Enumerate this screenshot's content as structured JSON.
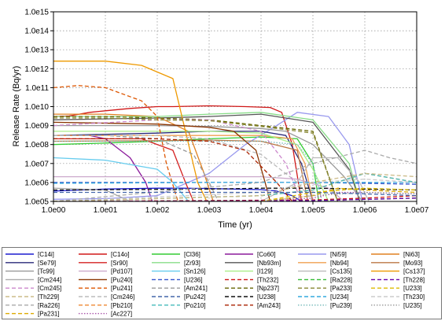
{
  "chart_data": {
    "type": "line",
    "title": "",
    "xlabel": "Time (yr)",
    "ylabel": "Release Rate (Bq/yr)",
    "xscale": "log",
    "yscale": "log",
    "xlim": [
      1,
      10000000
    ],
    "ylim": [
      100000,
      1000000000000000
    ],
    "grid": "dotted",
    "legend_position": "bottom",
    "x_ticks": [
      "1.0e00",
      "1.0e01",
      "1.0e02",
      "1.0e03",
      "1.0e04",
      "1.0e05",
      "1.0e06",
      "1.0e07"
    ],
    "y_ticks": [
      "1.0e05",
      "1.0e06",
      "1.0e07",
      "1.0e08",
      "1.0e09",
      "1.0e10",
      "1.0e11",
      "1.0e12",
      "1.0e13",
      "1.0e14",
      "1.0e15"
    ],
    "series": [
      {
        "name": "[C14i]",
        "color": "#1c1ccf",
        "dash": "solid",
        "x": [
          1,
          10,
          100,
          300,
          1000,
          3000,
          10000,
          20000,
          40000,
          60000
        ],
        "y": [
          350000,
          450000,
          500000,
          500000,
          480000,
          450000,
          420000,
          350000,
          200000,
          100000
        ]
      },
      {
        "name": "[C14o]",
        "color": "#d01818",
        "dash": "solid",
        "x": [
          1,
          2,
          5,
          10,
          30,
          100,
          200,
          1000,
          5000,
          15000,
          25000,
          40000,
          60000
        ],
        "y": [
          3000000000,
          3200000000,
          5000000000,
          6000000000,
          8000000000,
          10000000000,
          10000000000,
          11000000000,
          10000000000,
          9000000000,
          5000000000,
          100000000,
          100000
        ]
      },
      {
        "name": "[Cl36]",
        "color": "#33cc33",
        "dash": "solid",
        "x": [
          1,
          10,
          100,
          1000,
          10000,
          50000,
          100000,
          130000
        ],
        "y": [
          100000000,
          120000000,
          150000000,
          200000000,
          250000000,
          200000000,
          10000000,
          100000
        ]
      },
      {
        "name": "[Co60]",
        "color": "#8b1a9b",
        "dash": "solid",
        "x": [
          1,
          5,
          10,
          30,
          60,
          80
        ],
        "y": [
          300000000,
          300000000,
          200000000,
          20000000,
          1000000,
          100000
        ]
      },
      {
        "name": "[Ni59]",
        "color": "#9999ee",
        "dash": "solid",
        "x": [
          1,
          10,
          100,
          1000,
          5000,
          20000,
          50000,
          200000,
          500000,
          900000
        ],
        "y": [
          130000,
          140000,
          200000,
          3000000,
          100000000,
          1000000000,
          5000000000,
          3000000000,
          100000000,
          100000
        ]
      },
      {
        "name": "[Ni63]",
        "color": "#e08020",
        "dash": "solid",
        "x": [
          1,
          10,
          100,
          400,
          800,
          1200
        ],
        "y": [
          4000000000,
          4000000000,
          3000000000,
          500000000,
          3000000,
          100000
        ]
      },
      {
        "name": "[Se79]",
        "color": "#2a2a7a",
        "dash": "solid",
        "x": [
          1,
          100,
          1000,
          10000,
          30000,
          60000,
          100000
        ],
        "y": [
          300000000,
          400000000,
          500000000,
          500000000,
          300000000,
          10000000,
          100000
        ]
      },
      {
        "name": "[Sr90]",
        "color": "#d42020",
        "dash": "solid",
        "x": [
          1,
          50,
          200,
          350,
          500
        ],
        "y": [
          200000000,
          200000000,
          50000000,
          1000000,
          100000
        ]
      },
      {
        "name": "[Zr93]",
        "color": "#88dd88",
        "dash": "solid",
        "x": [
          1,
          100,
          1000,
          10000,
          100000,
          500000,
          800000
        ],
        "y": [
          3000000000,
          3000000000,
          4000000000,
          5000000000,
          2000000000,
          10000000,
          100000
        ]
      },
      {
        "name": "[Nb93m]",
        "color": "#555555",
        "dash": "solid",
        "x": [
          1,
          100,
          1000,
          10000,
          100000,
          500000,
          800000
        ],
        "y": [
          2000000000,
          2500000000,
          3000000000,
          4000000000,
          1500000000,
          5000000,
          100000
        ]
      },
      {
        "name": "[Nb94]",
        "color": "#f0a050",
        "dash": "solid",
        "x": [
          1,
          1000,
          10000,
          40000,
          70000,
          100000
        ],
        "y": [
          300000000,
          300000000,
          300000000,
          200000000,
          10000000,
          100000
        ]
      },
      {
        "name": "[Mo93]",
        "color": "#bb7744",
        "dash": "solid",
        "x": [
          1,
          100,
          1000,
          10000,
          50000,
          80000
        ],
        "y": [
          150000000,
          160000000,
          170000000,
          150000000,
          50000000,
          100000
        ]
      },
      {
        "name": "[Tc99]",
        "color": "#999999",
        "dash": "solid",
        "x": [
          1,
          100,
          1000,
          10000,
          30000,
          100000,
          400000,
          900000
        ],
        "y": [
          1000000000,
          1000000000,
          900000000,
          700000000,
          500000000,
          100000000,
          2000000,
          100000
        ]
      },
      {
        "name": "[Pd107]",
        "color": "#ccaacc",
        "dash": "solid",
        "x": [
          1,
          1000,
          10000,
          50000,
          200000,
          400000
        ],
        "y": [
          2000000,
          2000000,
          2000000,
          1500000,
          500000,
          100000
        ]
      },
      {
        "name": "[Sn126]",
        "color": "#66ccee",
        "dash": "solid",
        "x": [
          1,
          10,
          100,
          200,
          400
        ],
        "y": [
          20000000,
          15000000,
          5000000,
          1000000,
          100000
        ]
      },
      {
        "name": "[I129]",
        "color": "#aaee88",
        "dash": "solid",
        "x": [
          1,
          100,
          1000,
          10000,
          50000,
          100000,
          200000
        ],
        "y": [
          500000000,
          500000000,
          500000000,
          400000000,
          100000000,
          5000000,
          100000
        ]
      },
      {
        "name": "[Cs135]",
        "color": "#bbbbbb",
        "dash": "solid",
        "x": [
          1,
          10000,
          50000,
          100000,
          300000,
          800000,
          1200000
        ],
        "y": [
          100000,
          100000,
          1000000,
          20000000,
          20000000,
          1000000,
          100000
        ]
      },
      {
        "name": "[Cs137]",
        "color": "#ee9900",
        "dash": "solid",
        "x": [
          1,
          10,
          50,
          200,
          600,
          900
        ],
        "y": [
          2500000000000,
          2500000000000,
          1500000000000,
          300000000000,
          1000000,
          100000
        ]
      },
      {
        "name": "[Cm244]",
        "color": "#aaaaaa",
        "dash": "solid",
        "x": [
          1,
          10,
          30,
          60
        ],
        "y": [
          500000,
          400000,
          100000,
          100000
        ]
      },
      {
        "name": "[Pu240]",
        "color": "#883300",
        "dash": "solid",
        "x": [
          1,
          100,
          1000,
          3000,
          8000,
          12000,
          15000
        ],
        "y": [
          1500000000,
          1200000000,
          800000000,
          500000000,
          50000000,
          1000000,
          100000
        ]
      },
      {
        "name": "[U236]",
        "color": "#3355cc",
        "dash": "dashed",
        "x": [
          1,
          1000,
          100000,
          1000000,
          10000000
        ],
        "y": [
          1000000,
          1000000,
          1000000,
          900000,
          800000
        ]
      },
      {
        "name": "[Am241]",
        "color": "#999999",
        "dash": "dashed",
        "x": [
          1,
          10,
          100,
          500,
          1000,
          1500
        ],
        "y": [
          300000000,
          300000000,
          200000000,
          30000000,
          1000000,
          100000
        ]
      },
      {
        "name": "[Pu239]",
        "color": "#77bbbb",
        "dash": "dotted",
        "x": [
          1,
          1000,
          10000,
          50000,
          100000,
          150000
        ],
        "y": [
          150000000,
          150000000,
          150000000,
          100000000,
          10000000,
          100000
        ]
      },
      {
        "name": "[U234]",
        "color": "#33aadd",
        "dash": "dashed",
        "x": [
          1,
          1000,
          100000,
          1000000,
          10000000
        ],
        "y": [
          900000,
          1000000,
          1000000,
          1000000,
          1000000
        ]
      },
      {
        "name": "[Th232]",
        "color": "#cc1111",
        "dash": "dashed",
        "x": [
          1,
          100000,
          1000000,
          10000000
        ],
        "y": [
          100000,
          120000,
          150000,
          200000
        ]
      },
      {
        "name": "[Np237]",
        "color": "#666600",
        "dash": "dashed",
        "x": [
          1,
          10,
          100,
          1000,
          10000,
          100000,
          300000
        ],
        "y": [
          3000000000,
          3000000000,
          2500000000,
          2000000000,
          1000000000,
          500000000,
          100000
        ]
      },
      {
        "name": "[Pu241]",
        "color": "#dd5500",
        "dash": "dashed",
        "x": [
          1,
          3,
          10,
          50,
          100,
          150,
          250
        ],
        "y": [
          100000000000,
          130000000000,
          100000000000,
          20000000000,
          3000000000,
          10000000,
          100000
        ]
      },
      {
        "name": "[U238]",
        "color": "#111111",
        "dash": "dashed",
        "x": [
          1,
          1000,
          10000,
          100000,
          1000000,
          10000000
        ],
        "y": [
          400000,
          450000,
          500000,
          500000,
          450000,
          400000
        ]
      },
      {
        "name": "[Pa231]",
        "color": "#ddaa00",
        "dash": "dashed",
        "x": [
          1,
          10000,
          100000,
          300000,
          1000000,
          10000000
        ],
        "y": [
          100000,
          100000,
          200000,
          500000,
          400000,
          300000
        ]
      },
      {
        "name": "[Ac227]",
        "color": "#aa55aa",
        "dash": "dotted",
        "x": [
          1,
          10000,
          100000,
          300000,
          1000000,
          10000000
        ],
        "y": [
          100000,
          100000,
          150000,
          300000,
          300000,
          250000
        ]
      },
      {
        "name": "[Cm246]",
        "color": "#bbbbbb",
        "dash": "dashed",
        "x": [
          1,
          100,
          1000,
          10000,
          50000,
          100000
        ],
        "y": [
          300000000,
          300000000,
          200000000,
          30000000,
          1000000,
          100000
        ]
      },
      {
        "name": "[Ra226]",
        "color": "#aaaaaa",
        "dash": "dashed",
        "x": [
          1,
          10000,
          100000,
          1000000,
          3000000,
          10000000
        ],
        "y": [
          100000,
          1000000,
          10000000,
          50000000,
          20000000,
          10000000
        ]
      },
      {
        "name": "[Th230]",
        "color": "#cccccc",
        "dash": "dashed",
        "x": [
          1,
          10000,
          100000,
          1000000,
          10000000
        ],
        "y": [
          100000,
          300000,
          1000000,
          1500000,
          1000000
        ]
      },
      {
        "name": "[Pb210]",
        "color": "#ee8833",
        "dash": "dashed",
        "x": [
          1,
          10000,
          100000,
          1000000,
          10000000
        ],
        "y": [
          100000,
          200000,
          400000,
          3000000,
          1000000
        ]
      },
      {
        "name": "[Po210]",
        "color": "#44bbbb",
        "dash": "dashed",
        "x": [
          1,
          10000,
          100000,
          1000000,
          10000000
        ],
        "y": [
          100000,
          200000,
          400000,
          3000000,
          1000000
        ]
      },
      {
        "name": "[Am243]",
        "color": "#aa2200",
        "dash": "dashed",
        "x": [
          1,
          100,
          1000,
          5000,
          20000,
          40000
        ],
        "y": [
          200000000,
          200000000,
          150000000,
          50000000,
          1000000,
          100000
        ]
      },
      {
        "name": "[Cm245]",
        "color": "#cc88cc",
        "dash": "dashed",
        "x": [
          1,
          100,
          1000,
          10000,
          30000,
          60000
        ],
        "y": [
          1000000000,
          2000000000,
          2000000000,
          500000000,
          10000000,
          100000
        ]
      },
      {
        "name": "[Th229]",
        "color": "#ccbb88",
        "dash": "dashed",
        "x": [
          1,
          10000,
          100000,
          1000000,
          10000000
        ],
        "y": [
          100000,
          200000,
          1000000,
          3000000,
          2000000
        ]
      },
      {
        "name": "[Ra228]",
        "color": "#33bb33",
        "dash": "dashed",
        "x": [
          1,
          100000,
          10000000
        ],
        "y": [
          100000,
          110000,
          150000
        ]
      },
      {
        "name": "[Pa233]",
        "color": "#888833",
        "dash": "dashed",
        "x": [
          1,
          10,
          100,
          1000,
          10000,
          100000,
          300000
        ],
        "y": [
          2500000000,
          2500000000,
          2000000000,
          1800000000,
          900000000,
          400000000,
          100000
        ]
      },
      {
        "name": "[Th228]",
        "color": "#6600aa",
        "dash": "dashed",
        "x": [
          1,
          100000,
          10000000
        ],
        "y": [
          100000,
          110000,
          150000
        ]
      },
      {
        "name": "[U233]",
        "color": "#ddbb00",
        "dash": "dashed",
        "x": [
          1,
          10000,
          100000,
          1000000,
          10000000
        ],
        "y": [
          100000,
          100000,
          300000,
          500000,
          400000
        ]
      },
      {
        "name": "[U235]",
        "color": "#999999",
        "dash": "dotted",
        "x": [
          1,
          10000,
          100000,
          1000000,
          10000000
        ],
        "y": [
          100000,
          100000,
          200000,
          300000,
          250000
        ]
      },
      {
        "name": "[Pu242]",
        "color": "#4466aa",
        "dash": "dashed",
        "x": [
          1,
          1000,
          100000,
          1000000,
          10000000
        ],
        "y": [
          300000,
          300000,
          300000,
          250000,
          200000
        ]
      }
    ],
    "legend_layout": [
      [
        "[C14i]",
        "[C14o]",
        "[Cl36]",
        "[Co60]",
        "[Ni59]",
        "[Ni63]"
      ],
      [
        "[Se79]",
        "[Sr90]",
        "[Zr93]",
        "[Nb93m]",
        "[Nb94]",
        "[Mo93]"
      ],
      [
        "[Tc99]",
        "[Pd107]",
        "[Sn126]",
        "[I129]",
        "[Cs135]",
        "[Cs137]"
      ],
      [
        "[Cm244]",
        "[Pu240]",
        "[U236]",
        "[Th232]",
        "[Ra228]",
        "[Th228]"
      ],
      [
        "[Cm245]",
        "[Pu241]",
        "[Am241]",
        "[Np237]",
        "[Pa233]",
        "[U233]"
      ],
      [
        "[Th229]",
        "[Cm246]",
        "[Pu242]",
        "[U238]",
        "[U234]",
        "[Th230]"
      ],
      [
        "[Ra226]",
        "[Pb210]",
        "[Po210]",
        "[Am243]",
        "[Pu239]",
        "[U235]"
      ],
      [
        "[Pa231]",
        "[Ac227]",
        "",
        "",
        "",
        ""
      ]
    ]
  }
}
